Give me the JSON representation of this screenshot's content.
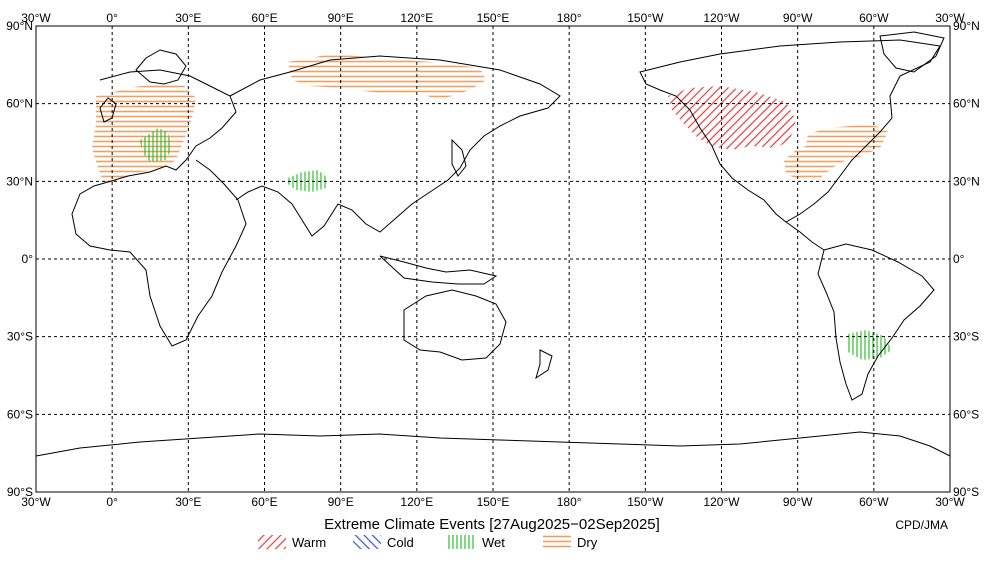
{
  "map": {
    "title": "Extreme Climate Events [27Aug2025−02Sep2025]",
    "credit": "CPD/JMA",
    "lon_labels": [
      "30°W",
      "0°",
      "30°E",
      "60°E",
      "90°E",
      "120°E",
      "150°E",
      "180°",
      "150°W",
      "120°W",
      "90°W",
      "60°W",
      "30°W"
    ],
    "lat_labels": [
      "90°N",
      "60°N",
      "30°N",
      "0°",
      "30°S",
      "60°S",
      "90°S"
    ],
    "legend": [
      {
        "key": "warm",
        "label": "Warm",
        "color": "#e83a3a",
        "pattern": "diag-right"
      },
      {
        "key": "cold",
        "label": "Cold",
        "color": "#3a4ee8",
        "pattern": "diag-left"
      },
      {
        "key": "wet",
        "label": "Wet",
        "color": "#2fbf2f",
        "pattern": "vertical"
      },
      {
        "key": "dry",
        "label": "Dry",
        "color": "#f0a060",
        "pattern": "horizontal"
      }
    ],
    "events": [
      {
        "region": "Europe",
        "type": "dry"
      },
      {
        "region": "Central Europe",
        "type": "wet"
      },
      {
        "region": "Northern Siberia",
        "type": "dry"
      },
      {
        "region": "Northern India",
        "type": "wet"
      },
      {
        "region": "Western Canada",
        "type": "warm"
      },
      {
        "region": "Eastern North America",
        "type": "dry"
      },
      {
        "region": "Southern South America",
        "type": "wet"
      }
    ]
  }
}
